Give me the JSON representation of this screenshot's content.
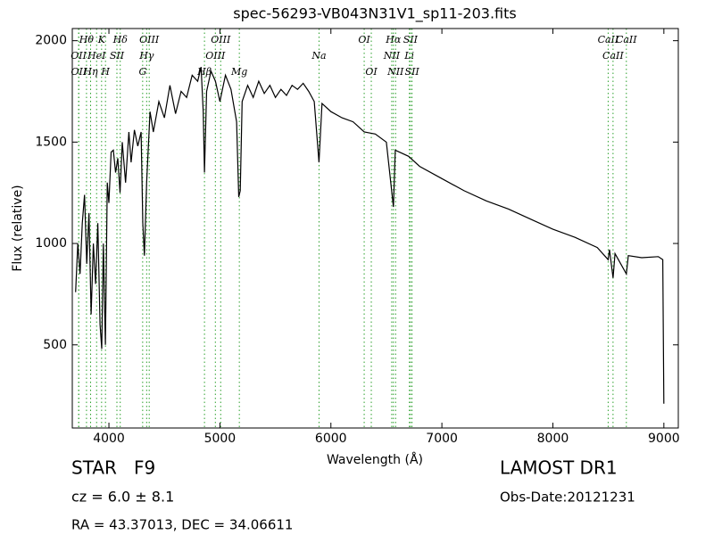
{
  "chart_data": {
    "type": "line",
    "title": "spec-56293-VB043N31V1_sp11-203.fits",
    "x_label": "Wavelength (Å)",
    "y_label": "Flux (relative)",
    "xlim": [
      3670,
      9130
    ],
    "ylim": [
      90,
      2060
    ],
    "xticks": [
      4000,
      5000,
      6000,
      7000,
      8000,
      9000
    ],
    "yticks": [
      500,
      1000,
      1500,
      2000
    ],
    "color": "#000000",
    "annotation_color": "#2ca02c",
    "x": [
      3700,
      3720,
      3740,
      3760,
      3780,
      3800,
      3820,
      3840,
      3860,
      3880,
      3900,
      3920,
      3935,
      3950,
      3968,
      3985,
      4000,
      4020,
      4040,
      4060,
      4080,
      4100,
      4120,
      4150,
      4180,
      4200,
      4230,
      4260,
      4290,
      4305,
      4320,
      4340,
      4370,
      4400,
      4450,
      4500,
      4550,
      4600,
      4650,
      4700,
      4750,
      4800,
      4830,
      4850,
      4861,
      4880,
      4920,
      4960,
      5000,
      5050,
      5100,
      5150,
      5170,
      5183,
      5200,
      5250,
      5300,
      5350,
      5400,
      5450,
      5500,
      5550,
      5600,
      5650,
      5700,
      5750,
      5800,
      5850,
      5893,
      5920,
      6000,
      6100,
      6200,
      6300,
      6400,
      6500,
      6563,
      6580,
      6700,
      6800,
      7000,
      7200,
      7400,
      7600,
      7800,
      8000,
      8200,
      8400,
      8498,
      8510,
      8542,
      8560,
      8662,
      8680,
      8800,
      8950,
      8990,
      9000
    ],
    "values": [
      760,
      1000,
      850,
      1100,
      1240,
      900,
      1150,
      650,
      1000,
      800,
      1100,
      600,
      480,
      1000,
      500,
      1300,
      1200,
      1450,
      1460,
      1350,
      1420,
      1250,
      1500,
      1300,
      1550,
      1400,
      1560,
      1480,
      1550,
      1100,
      940,
      1300,
      1650,
      1550,
      1700,
      1620,
      1780,
      1640,
      1750,
      1720,
      1830,
      1800,
      1870,
      1650,
      1350,
      1750,
      1850,
      1800,
      1700,
      1830,
      1760,
      1600,
      1230,
      1260,
      1700,
      1780,
      1720,
      1800,
      1740,
      1780,
      1720,
      1760,
      1730,
      1780,
      1760,
      1790,
      1750,
      1700,
      1400,
      1690,
      1650,
      1620,
      1600,
      1550,
      1540,
      1500,
      1180,
      1460,
      1430,
      1380,
      1320,
      1260,
      1210,
      1170,
      1120,
      1070,
      1030,
      980,
      920,
      970,
      830,
      950,
      850,
      940,
      930,
      935,
      920,
      210
    ],
    "annotations": [
      {
        "label": "Hθ",
        "x": 3798
      },
      {
        "label": "OII",
        "x": 3727
      },
      {
        "label": "OII",
        "x": 3729
      },
      {
        "label": "K",
        "x": 3934
      },
      {
        "label": "HeI",
        "x": 3889
      },
      {
        "label": "Hη",
        "x": 3835
      },
      {
        "label": "Hδ",
        "x": 4102
      },
      {
        "label": "SII",
        "x": 4072
      },
      {
        "label": "H",
        "x": 3969
      },
      {
        "label": "OIII",
        "x": 4363
      },
      {
        "label": "Hγ",
        "x": 4340
      },
      {
        "label": "G",
        "x": 4304
      },
      {
        "label": "OIII",
        "x": 5007
      },
      {
        "label": "OIII",
        "x": 4959
      },
      {
        "label": "Hβ",
        "x": 4861
      },
      {
        "label": "OI",
        "x": 6300
      },
      {
        "label": "Na",
        "x": 5893
      },
      {
        "label": "Mg",
        "x": 5175
      },
      {
        "label": "Hα",
        "x": 6563
      },
      {
        "label": "NII",
        "x": 6548
      },
      {
        "label": "OI",
        "x": 6364
      },
      {
        "label": "SII",
        "x": 6717
      },
      {
        "label": "Li",
        "x": 6707
      },
      {
        "label": "NII",
        "x": 6583
      },
      {
        "label": "CaII",
        "x": 8498
      },
      {
        "label": "CaII",
        "x": 8542
      },
      {
        "label": "SII",
        "x": 6731
      },
      {
        "label": "CaII",
        "x": 8662
      }
    ],
    "object_class": "STAR   F9",
    "redshift": "cz = 6.0 ± 8.1",
    "coordinates": "RA = 43.37013, DEC = 34.06611",
    "survey": "LAMOST DR1",
    "obs_date": "Obs-Date:20121231"
  }
}
